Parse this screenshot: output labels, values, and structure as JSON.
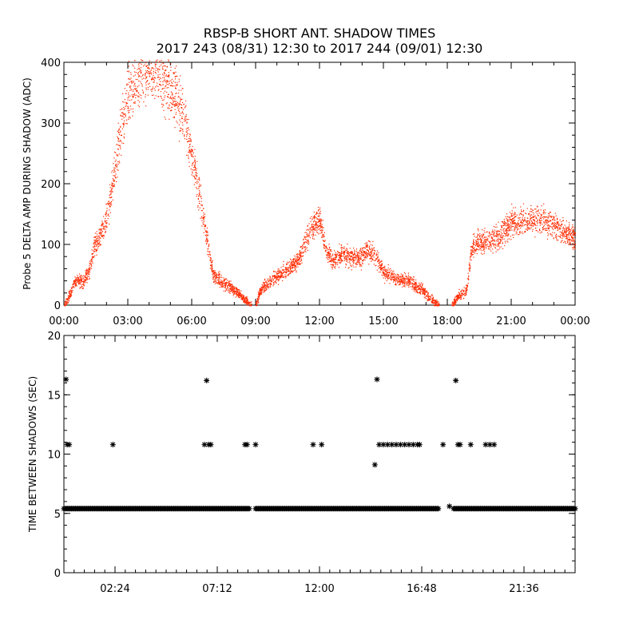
{
  "page": {
    "title_line1": "RBSP-B SHORT ANT. SHADOW TIMES",
    "title_line2": "2017 243 (08/31) 12:30 to 2017 244 (09/01) 12:30"
  },
  "chart_data": [
    {
      "type": "scatter",
      "name": "top-panel",
      "ylabel": "Probe 5 DELTA AMP DURING SHADOW (ADC)",
      "xlim": [
        0,
        24
      ],
      "ylim": [
        0,
        400
      ],
      "x_unit": "hours",
      "x_ticks": [
        0,
        3,
        6,
        9,
        12,
        15,
        18,
        21,
        24
      ],
      "x_tick_labels": [
        "00:00",
        "03:00",
        "06:00",
        "09:00",
        "12:00",
        "15:00",
        "18:00",
        "21:00",
        "00:00"
      ],
      "y_ticks": [
        0,
        100,
        200,
        300,
        400
      ],
      "y_tick_labels": [
        "0",
        "100",
        "200",
        "300",
        "400"
      ],
      "color": "#ff2a00",
      "trend": [
        [
          0.0,
          0
        ],
        [
          0.3,
          20
        ],
        [
          0.5,
          40
        ],
        [
          0.9,
          40
        ],
        [
          1.2,
          60
        ],
        [
          1.4,
          95
        ],
        [
          1.9,
          130
        ],
        [
          2.3,
          200
        ],
        [
          2.6,
          280
        ],
        [
          2.9,
          330
        ],
        [
          3.3,
          365
        ],
        [
          3.7,
          385
        ],
        [
          4.2,
          390
        ],
        [
          4.6,
          380
        ],
        [
          5.0,
          360
        ],
        [
          5.4,
          330
        ],
        [
          5.8,
          280
        ],
        [
          6.2,
          210
        ],
        [
          6.6,
          130
        ],
        [
          7.0,
          50
        ],
        [
          7.6,
          35
        ],
        [
          8.2,
          20
        ],
        [
          8.5,
          8
        ],
        [
          8.8,
          0
        ]
      ],
      "trend_2": [
        [
          9.0,
          0
        ],
        [
          9.2,
          25
        ],
        [
          9.9,
          45
        ],
        [
          10.6,
          62
        ],
        [
          11.1,
          80
        ],
        [
          11.6,
          130
        ],
        [
          12.0,
          140
        ],
        [
          12.3,
          90
        ],
        [
          12.6,
          75
        ],
        [
          13.0,
          85
        ],
        [
          13.4,
          80
        ],
        [
          13.8,
          75
        ],
        [
          14.2,
          90
        ],
        [
          14.6,
          85
        ],
        [
          15.0,
          55
        ],
        [
          15.6,
          45
        ],
        [
          16.2,
          40
        ],
        [
          16.8,
          25
        ],
        [
          17.3,
          8
        ],
        [
          17.6,
          0
        ]
      ],
      "trend_3": [
        [
          18.2,
          0
        ],
        [
          18.5,
          15
        ],
        [
          18.9,
          25
        ],
        [
          19.1,
          90
        ],
        [
          19.4,
          105
        ],
        [
          19.9,
          105
        ],
        [
          20.4,
          115
        ],
        [
          21.0,
          135
        ],
        [
          21.6,
          140
        ],
        [
          22.2,
          140
        ],
        [
          22.8,
          135
        ],
        [
          23.4,
          125
        ],
        [
          24.0,
          110
        ]
      ]
    },
    {
      "type": "scatter",
      "name": "bottom-panel",
      "ylabel": "TIME BETWEEN SHADOWS (SEC)",
      "xlim": [
        0,
        24
      ],
      "ylim": [
        0,
        20
      ],
      "x_unit": "hours",
      "x_ticks": [
        2.4,
        7.2,
        12.0,
        16.8,
        21.6
      ],
      "x_tick_labels": [
        "02:24",
        "07:12",
        "12:00",
        "16:48",
        "21:36"
      ],
      "y_ticks": [
        0,
        5,
        10,
        15,
        20
      ],
      "y_tick_labels": [
        "0",
        "5",
        "10",
        "15",
        "20"
      ],
      "marker": "*",
      "baseline_value": 5.4,
      "baseline_segments": [
        [
          0.0,
          8.7
        ],
        [
          9.0,
          17.6
        ],
        [
          18.3,
          24.0
        ]
      ],
      "points": [
        [
          0.1,
          16.3
        ],
        [
          0.15,
          10.8
        ],
        [
          0.25,
          10.8
        ],
        [
          2.3,
          10.8
        ],
        [
          6.6,
          10.8
        ],
        [
          6.7,
          16.2
        ],
        [
          6.8,
          10.8
        ],
        [
          6.9,
          10.8
        ],
        [
          8.5,
          10.8
        ],
        [
          8.6,
          10.8
        ],
        [
          9.0,
          10.8
        ],
        [
          11.7,
          10.8
        ],
        [
          12.1,
          10.8
        ],
        [
          14.7,
          16.3
        ],
        [
          14.6,
          9.1
        ],
        [
          14.8,
          10.8
        ],
        [
          15.0,
          10.8
        ],
        [
          15.2,
          10.8
        ],
        [
          15.4,
          10.8
        ],
        [
          15.6,
          10.8
        ],
        [
          15.8,
          10.8
        ],
        [
          16.0,
          10.8
        ],
        [
          16.2,
          10.8
        ],
        [
          16.4,
          10.8
        ],
        [
          16.6,
          10.8
        ],
        [
          16.7,
          10.8
        ],
        [
          17.8,
          10.8
        ],
        [
          18.1,
          5.6
        ],
        [
          18.4,
          16.2
        ],
        [
          18.5,
          10.8
        ],
        [
          18.6,
          10.8
        ],
        [
          19.1,
          10.8
        ],
        [
          19.8,
          10.8
        ],
        [
          20.0,
          10.8
        ],
        [
          20.2,
          10.8
        ]
      ]
    }
  ]
}
